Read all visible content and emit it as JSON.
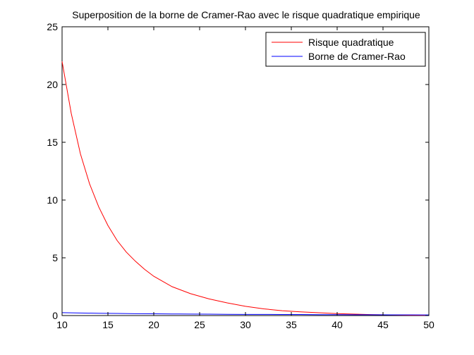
{
  "chart_data": {
    "type": "line",
    "title": "Superposition de la borne de Cramer-Rao avec le risque quadratique empirique",
    "xlabel": "",
    "ylabel": "",
    "xlim": [
      10,
      50
    ],
    "ylim": [
      0,
      25
    ],
    "xticks": [
      10,
      15,
      20,
      25,
      30,
      35,
      40,
      45,
      50
    ],
    "yticks": [
      0,
      5,
      10,
      15,
      20,
      25
    ],
    "grid": false,
    "legend_position": "top-right",
    "series": [
      {
        "name": "Risque quadratique",
        "color": "#ff0000",
        "x": [
          10,
          11,
          12,
          13,
          14,
          15,
          16,
          17,
          18,
          19,
          20,
          22,
          24,
          26,
          28,
          30,
          32,
          34,
          36,
          38,
          40,
          42,
          44,
          46,
          48,
          50
        ],
        "y": [
          22,
          17.5,
          14.0,
          11.4,
          9.4,
          7.8,
          6.5,
          5.5,
          4.7,
          4.0,
          3.4,
          2.5,
          1.9,
          1.45,
          1.1,
          0.8,
          0.58,
          0.42,
          0.32,
          0.24,
          0.17,
          0.12,
          0.08,
          0.05,
          0.03,
          0.02
        ]
      },
      {
        "name": "Borne de Cramer-Rao",
        "color": "#0000ff",
        "x": [
          10,
          12,
          14,
          16,
          18,
          20,
          22,
          24,
          26,
          28,
          30,
          32,
          34,
          36,
          38,
          40,
          42,
          44,
          46,
          48,
          50
        ],
        "y": [
          0.25,
          0.22,
          0.2,
          0.18,
          0.16,
          0.15,
          0.14,
          0.13,
          0.12,
          0.11,
          0.1,
          0.1,
          0.09,
          0.09,
          0.08,
          0.08,
          0.07,
          0.07,
          0.06,
          0.06,
          0.05
        ]
      }
    ]
  }
}
